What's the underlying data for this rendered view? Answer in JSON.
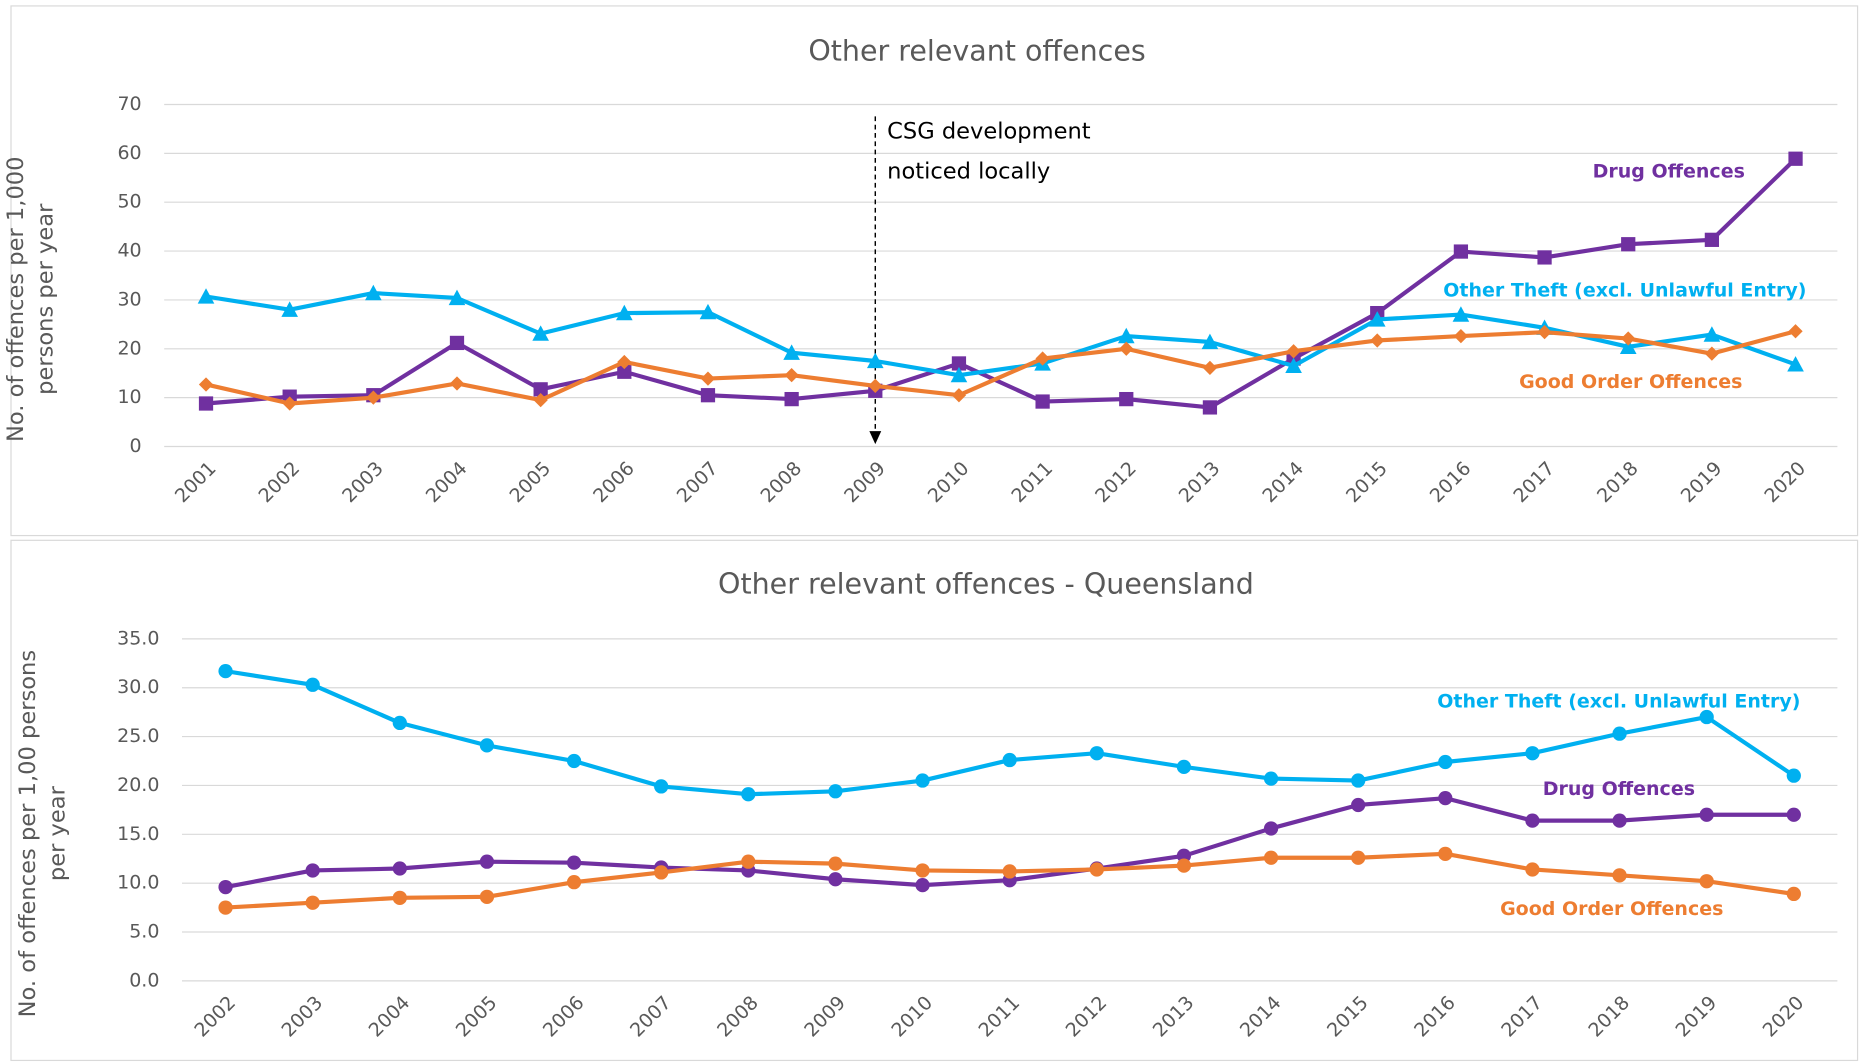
{
  "chart_data": [
    {
      "type": "line",
      "title": "Other relevant offences",
      "y_label": "No. of offences per 1,000 persons per year",
      "categories": [
        "2001",
        "2002",
        "2003",
        "2004",
        "2005",
        "2006",
        "2007",
        "2008",
        "2009",
        "2010",
        "2011",
        "2012",
        "2013",
        "2014",
        "2015",
        "2016",
        "2017",
        "2018",
        "2019",
        "2020"
      ],
      "ylim": [
        0,
        70
      ],
      "yticks": [
        0,
        10,
        20,
        30,
        40,
        50,
        60,
        70
      ],
      "grid": true,
      "annotation": {
        "lines": [
          "CSG development",
          "noticed locally"
        ],
        "category": "2009"
      },
      "series": [
        {
          "name": "Drug Offences",
          "color": "#7030a0",
          "marker": "square",
          "values": [
            8.8,
            10.2,
            10.5,
            21.2,
            11.7,
            15.3,
            10.5,
            9.7,
            11.4,
            17.0,
            9.2,
            9.7,
            8.0,
            18.0,
            27.3,
            39.9,
            38.7,
            41.4,
            42.3,
            58.9
          ]
        },
        {
          "name": "Other Theft (excl. Unlawful Entry)",
          "color": "#00b0f0",
          "marker": "triangle",
          "values": [
            30.7,
            28.0,
            31.4,
            30.4,
            23.1,
            27.3,
            27.5,
            19.2,
            17.5,
            14.6,
            17.0,
            22.6,
            21.4,
            16.5,
            26.0,
            27.0,
            24.3,
            20.4,
            22.9,
            16.8
          ]
        },
        {
          "name": "Good Order Offences",
          "color": "#ed7d31",
          "marker": "diamond",
          "values": [
            12.7,
            8.8,
            10.0,
            12.9,
            9.5,
            17.3,
            13.9,
            14.6,
            12.4,
            10.5,
            18.0,
            20.0,
            16.1,
            19.5,
            21.7,
            22.6,
            23.4,
            22.1,
            19.0,
            23.6
          ]
        }
      ]
    },
    {
      "type": "line",
      "title": "Other relevant offences - Queensland",
      "y_label": "No. of offences per 1,00 persons per year",
      "categories": [
        "2002",
        "2003",
        "2004",
        "2005",
        "2006",
        "2007",
        "2008",
        "2009",
        "2010",
        "2011",
        "2012",
        "2013",
        "2014",
        "2015",
        "2016",
        "2017",
        "2018",
        "2019",
        "2020"
      ],
      "ylim": [
        0,
        35
      ],
      "yticks": [
        {
          "value": 0,
          "label": "0.0"
        },
        {
          "value": 5,
          "label": "5.0"
        },
        {
          "value": 10,
          "label": "10.0"
        },
        {
          "value": 15,
          "label": "15.0"
        },
        {
          "value": 20,
          "label": "20.0"
        },
        {
          "value": 25,
          "label": "25.0"
        },
        {
          "value": 30,
          "label": "30.0"
        },
        {
          "value": 35,
          "label": "35.0"
        }
      ],
      "grid": true,
      "series": [
        {
          "name": "Other Theft (excl. Unlawful Entry)",
          "color": "#00b0f0",
          "marker": "circle",
          "values": [
            31.7,
            30.3,
            26.4,
            24.1,
            22.5,
            19.9,
            19.1,
            19.4,
            20.5,
            22.6,
            23.3,
            21.9,
            20.7,
            20.5,
            22.4,
            23.3,
            25.3,
            27.0,
            21.0
          ]
        },
        {
          "name": "Drug Offences",
          "color": "#7030a0",
          "marker": "circle",
          "values": [
            9.6,
            11.3,
            11.5,
            12.2,
            12.1,
            11.6,
            11.3,
            10.4,
            9.8,
            10.3,
            11.5,
            12.8,
            15.6,
            18.0,
            18.7,
            16.4,
            16.4,
            17.0,
            17.0
          ]
        },
        {
          "name": "Good Order Offences",
          "color": "#ed7d31",
          "marker": "circle",
          "values": [
            7.5,
            8.0,
            8.5,
            8.6,
            10.1,
            11.1,
            12.2,
            12.0,
            11.3,
            11.2,
            11.4,
            11.8,
            12.6,
            12.6,
            13.0,
            11.4,
            10.8,
            10.2,
            8.9
          ]
        }
      ]
    }
  ]
}
